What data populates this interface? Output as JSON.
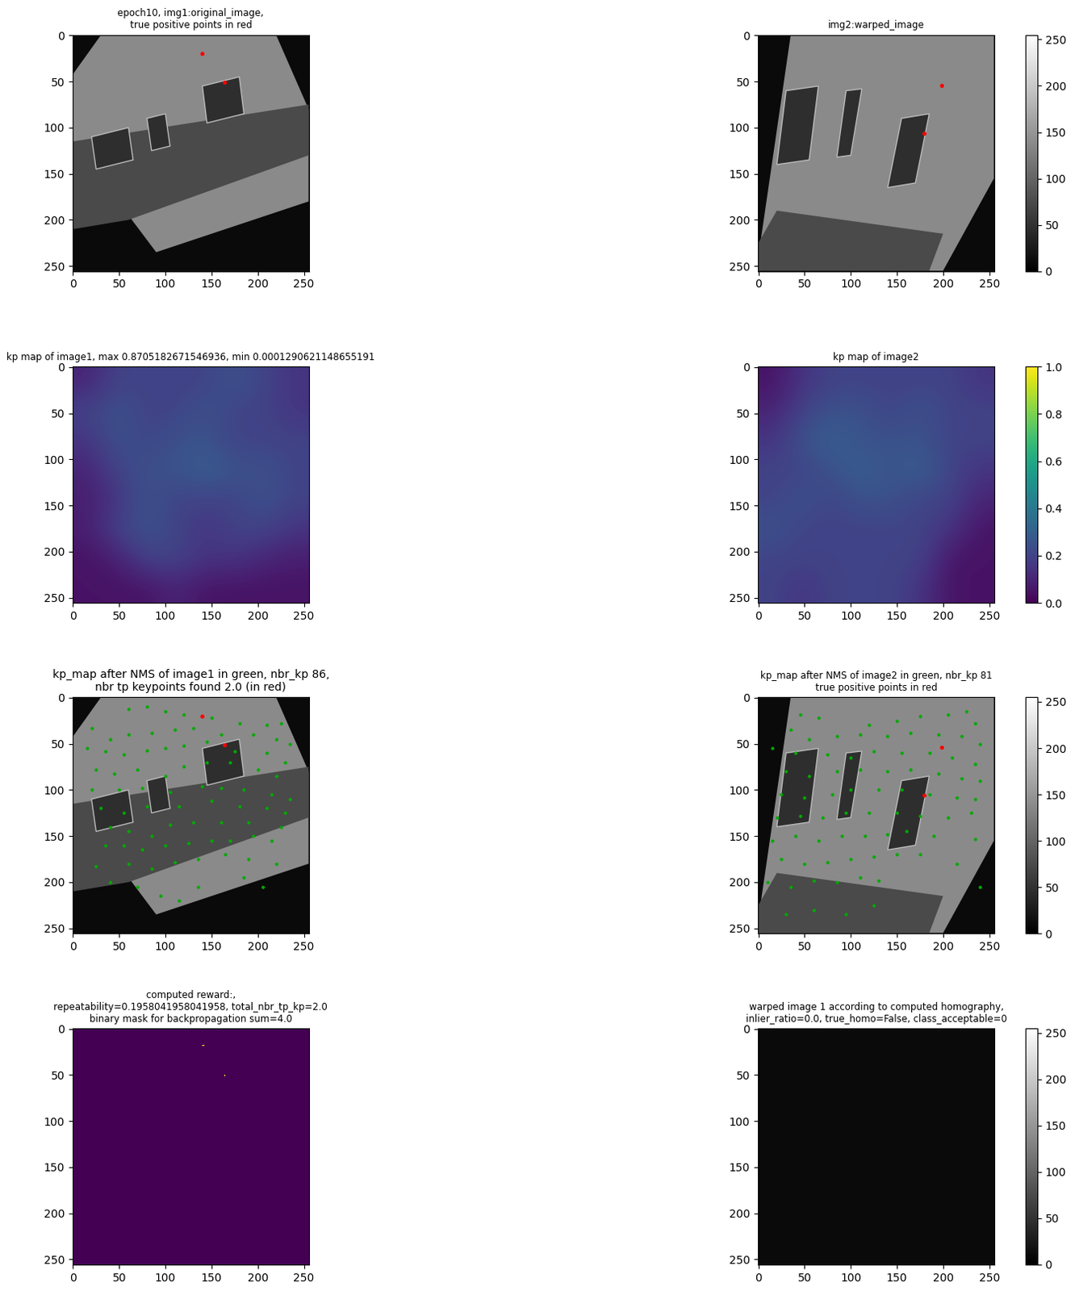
{
  "chart_data": [
    {
      "type": "image",
      "title": "epoch10, img1:original_image,\ntrue positive points in red",
      "xlim": [
        -0.5,
        255.5
      ],
      "ylim": [
        255.5,
        -0.5
      ],
      "xticks": [
        0,
        50,
        100,
        150,
        200,
        250
      ],
      "yticks": [
        0,
        50,
        100,
        150,
        200,
        250
      ],
      "red_points": {
        "x": [
          140,
          164
        ],
        "y": [
          20,
          51
        ]
      }
    },
    {
      "type": "image",
      "title": "img2:warped_image",
      "xlim": [
        -0.5,
        255.5
      ],
      "ylim": [
        255.5,
        -0.5
      ],
      "xticks": [
        0,
        50,
        100,
        150,
        200,
        250
      ],
      "yticks": [
        0,
        50,
        100,
        150,
        200,
        250
      ],
      "red_points": {
        "x": [
          198,
          179
        ],
        "y": [
          54,
          106
        ]
      },
      "colorbar": {
        "lim": [
          0,
          255
        ],
        "ticks": [
          0,
          50,
          100,
          150,
          200,
          250
        ]
      }
    },
    {
      "type": "heatmap",
      "title": "kp map of image1, max 0.8705182671546936, min 0.0001290621148655191",
      "xlim": [
        -0.5,
        255.5
      ],
      "ylim": [
        255.5,
        -0.5
      ],
      "xticks": [
        0,
        50,
        100,
        150,
        200,
        250
      ],
      "yticks": [
        0,
        50,
        100,
        150,
        200,
        250
      ],
      "cells": [
        [
          0.1,
          0.2,
          0.2,
          0.2,
          0.2,
          0.25,
          0.2,
          0.15
        ],
        [
          0.2,
          0.25,
          0.2,
          0.2,
          0.25,
          0.2,
          0.2,
          0.15
        ],
        [
          0.15,
          0.25,
          0.2,
          0.25,
          0.25,
          0.2,
          0.2,
          0.2
        ],
        [
          0.1,
          0.2,
          0.25,
          0.25,
          0.3,
          0.25,
          0.25,
          0.2
        ],
        [
          0.08,
          0.15,
          0.25,
          0.2,
          0.2,
          0.2,
          0.25,
          0.2
        ],
        [
          0.08,
          0.2,
          0.25,
          0.2,
          0.15,
          0.2,
          0.2,
          0.15
        ],
        [
          0.05,
          0.08,
          0.2,
          0.2,
          0.15,
          0.15,
          0.1,
          0.08
        ],
        [
          0.05,
          0.05,
          0.05,
          0.1,
          0.05,
          0.05,
          0.05,
          0.05
        ]
      ],
      "cell_range": [
        0.0,
        1.0
      ]
    },
    {
      "type": "heatmap",
      "title": "kp map of image2",
      "xlim": [
        -0.5,
        255.5
      ],
      "ylim": [
        255.5,
        -0.5
      ],
      "xticks": [
        0,
        50,
        100,
        150,
        200,
        250
      ],
      "yticks": [
        0,
        50,
        100,
        150,
        200,
        250
      ],
      "cells": [
        [
          0.05,
          0.15,
          0.2,
          0.2,
          0.2,
          0.2,
          0.2,
          0.15
        ],
        [
          0.1,
          0.2,
          0.25,
          0.25,
          0.2,
          0.25,
          0.2,
          0.2
        ],
        [
          0.15,
          0.25,
          0.3,
          0.25,
          0.25,
          0.25,
          0.2,
          0.2
        ],
        [
          0.2,
          0.2,
          0.25,
          0.3,
          0.25,
          0.3,
          0.2,
          0.15
        ],
        [
          0.2,
          0.25,
          0.2,
          0.25,
          0.25,
          0.2,
          0.2,
          0.1
        ],
        [
          0.25,
          0.2,
          0.2,
          0.2,
          0.2,
          0.2,
          0.15,
          0.05
        ],
        [
          0.2,
          0.2,
          0.2,
          0.2,
          0.2,
          0.2,
          0.05,
          0.05
        ],
        [
          0.2,
          0.15,
          0.2,
          0.2,
          0.2,
          0.15,
          0.05,
          0.05
        ]
      ],
      "cell_range": [
        0.0,
        1.0
      ],
      "colorbar": {
        "lim": [
          0.0,
          1.0
        ],
        "ticks": [
          0.0,
          0.2,
          0.4,
          0.6,
          0.8,
          1.0
        ]
      }
    },
    {
      "type": "image",
      "title": "kp_map after NMS of image1 in green, nbr_kp 86,\nnbr tp keypoints found 2.0 (in red)",
      "xlim": [
        -0.5,
        255.5
      ],
      "ylim": [
        255.5,
        -0.5
      ],
      "xticks": [
        0,
        50,
        100,
        150,
        200,
        250
      ],
      "yticks": [
        0,
        50,
        100,
        150,
        200,
        250
      ],
      "green_points": {
        "x": [
          60,
          80,
          100,
          120,
          150,
          180,
          210,
          225,
          20,
          40,
          60,
          85,
          110,
          130,
          160,
          195,
          220,
          235,
          15,
          35,
          55,
          80,
          100,
          120,
          145,
          175,
          210,
          230,
          25,
          45,
          70,
          100,
          120,
          145,
          170,
          200,
          220,
          20,
          50,
          75,
          105,
          140,
          160,
          185,
          215,
          235,
          30,
          55,
          80,
          115,
          150,
          180,
          210,
          230,
          40,
          60,
          85,
          105,
          130,
          160,
          190,
          225,
          35,
          55,
          75,
          100,
          125,
          150,
          170,
          195,
          215,
          25,
          60,
          85,
          110,
          135,
          165,
          190,
          220,
          40,
          70,
          95,
          115,
          135,
          185,
          205
        ],
        "y": [
          12,
          10,
          15,
          18,
          22,
          28,
          30,
          28,
          33,
          45,
          40,
          38,
          35,
          33,
          40,
          40,
          45,
          50,
          55,
          58,
          62,
          57,
          55,
          52,
          48,
          58,
          60,
          70,
          78,
          82,
          78,
          85,
          75,
          70,
          70,
          78,
          85,
          100,
          100,
          98,
          102,
          96,
          98,
          100,
          105,
          110,
          120,
          125,
          118,
          118,
          112,
          118,
          120,
          125,
          140,
          145,
          150,
          138,
          135,
          135,
          135,
          140,
          160,
          160,
          165,
          160,
          158,
          155,
          155,
          150,
          155,
          183,
          180,
          185,
          178,
          175,
          170,
          175,
          180,
          200,
          205,
          215,
          220,
          205,
          195,
          205
        ]
      },
      "red_points": {
        "x": [
          140,
          164
        ],
        "y": [
          20,
          51
        ]
      }
    },
    {
      "type": "image",
      "title": "kp_map after NMS of image2 in green, nbr_kp 81\ntrue positive points in red",
      "xlim": [
        -0.5,
        255.5
      ],
      "ylim": [
        255.5,
        -0.5
      ],
      "xticks": [
        0,
        50,
        100,
        150,
        200,
        250
      ],
      "yticks": [
        0,
        50,
        100,
        150,
        200,
        250
      ],
      "green_points": {
        "x": [
          45,
          65,
          120,
          150,
          175,
          205,
          225,
          235,
          35,
          55,
          85,
          110,
          140,
          165,
          195,
          220,
          240,
          15,
          40,
          75,
          100,
          125,
          155,
          185,
          210,
          235,
          30,
          55,
          85,
          110,
          140,
          165,
          195,
          220,
          240,
          25,
          50,
          80,
          100,
          130,
          155,
          185,
          215,
          235,
          20,
          45,
          70,
          95,
          120,
          150,
          175,
          205,
          230,
          15,
          40,
          65,
          90,
          115,
          140,
          160,
          190,
          235,
          25,
          50,
          75,
          100,
          125,
          150,
          175,
          215,
          10,
          35,
          60,
          85,
          110,
          130,
          240,
          30,
          60,
          95,
          125
        ],
        "y": [
          18,
          22,
          30,
          25,
          20,
          18,
          15,
          28,
          35,
          45,
          42,
          40,
          42,
          38,
          40,
          42,
          50,
          55,
          60,
          62,
          65,
          58,
          60,
          60,
          65,
          72,
          80,
          85,
          80,
          78,
          80,
          78,
          82,
          88,
          90,
          105,
          108,
          105,
          100,
          100,
          100,
          105,
          108,
          110,
          130,
          128,
          130,
          125,
          125,
          125,
          128,
          130,
          125,
          155,
          150,
          155,
          150,
          150,
          148,
          145,
          150,
          153,
          175,
          180,
          178,
          175,
          172,
          170,
          170,
          180,
          200,
          205,
          198,
          200,
          195,
          198,
          205,
          235,
          230,
          235,
          225
        ]
      },
      "red_points": {
        "x": [
          198,
          179
        ],
        "y": [
          54,
          106
        ]
      },
      "colorbar": {
        "lim": [
          0,
          255
        ],
        "ticks": [
          0,
          50,
          100,
          150,
          200,
          250
        ]
      }
    },
    {
      "type": "mask",
      "title": "computed reward:,\nrepeatability=0.1958041958041958, total_nbr_tp_kp=2.0\nbinary mask for backpropagation sum=4.0",
      "xlim": [
        -0.5,
        255.5
      ],
      "ylim": [
        255.5,
        -0.5
      ],
      "xticks": [
        0,
        50,
        100,
        150,
        200,
        250
      ],
      "yticks": [
        0,
        50,
        100,
        150,
        200,
        250
      ],
      "mask_points": {
        "x": [
          140,
          141,
          164,
          164
        ],
        "y": [
          18,
          18,
          50,
          51
        ]
      }
    },
    {
      "type": "image",
      "title": "warped image 1 according to computed homography,\ninlier_ratio=0.0, true_homo=False, class_acceptable=0",
      "xlim": [
        -0.5,
        255.5
      ],
      "ylim": [
        255.5,
        -0.5
      ],
      "xticks": [
        0,
        50,
        100,
        150,
        200,
        250
      ],
      "yticks": [
        0,
        50,
        100,
        150,
        200,
        250
      ],
      "colorbar": {
        "lim": [
          0,
          255
        ],
        "ticks": [
          0,
          50,
          100,
          150,
          200,
          250
        ]
      }
    }
  ]
}
